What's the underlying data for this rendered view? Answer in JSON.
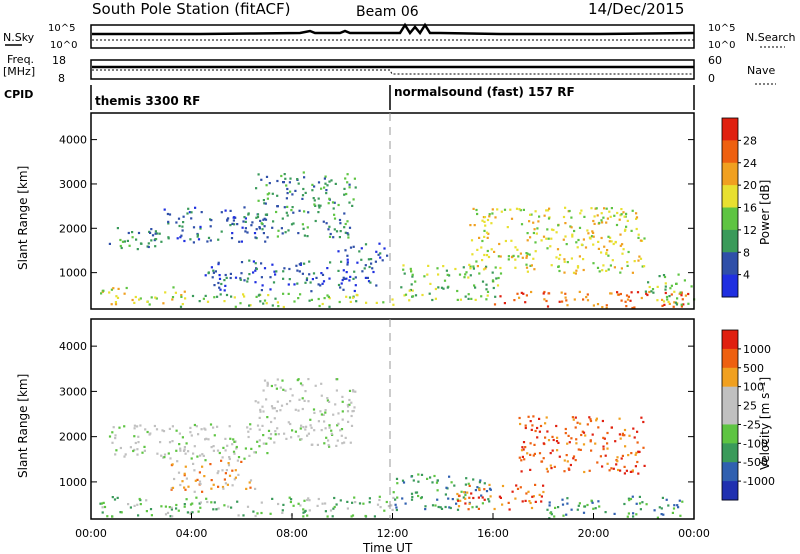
{
  "header": {
    "title": "South Pole Station (fitACF)",
    "beam": "Beam 06",
    "date": "14/Dec/2015"
  },
  "top_panels": {
    "nsky_label": "N.Sky",
    "nsky_ticks": [
      "10^5",
      "10^0"
    ],
    "nsearch_label": "N.Search",
    "nsearch_ticks": [
      "10^5",
      "10^0"
    ],
    "freq_label_1": "Freq.",
    "freq_label_2": "[MHz]",
    "freq_ticks": [
      "18",
      "8"
    ],
    "nave_label": "Nave",
    "nave_ticks": [
      "60",
      "0"
    ],
    "cpid_label": "CPID",
    "cpid_left": "themis 3300 RF",
    "cpid_right": "normalsound (fast) 157 RF",
    "cpid_switch_time": "12:00"
  },
  "chart_data": [
    {
      "type": "heatmap",
      "name": "power",
      "ylabel": "Slant Range [km]",
      "xlabel": "",
      "ylim": [
        180,
        4600
      ],
      "xlim": [
        "00:00",
        "24:00"
      ],
      "y_ticks": [
        "1000",
        "2000",
        "3000",
        "4000"
      ],
      "colorbar_label": "Power [dB]",
      "colorbar_ticks": [
        "4",
        "8",
        "12",
        "16",
        "20",
        "24",
        "28"
      ],
      "colorbar_colors": [
        "#1f2fe0",
        "#2f4fa8",
        "#3a9a5a",
        "#5ec442",
        "#e8e030",
        "#f0a020",
        "#ee6010",
        "#e02010"
      ],
      "regions": [
        {
          "t0": 0.7,
          "t1": 2.6,
          "r0": 1500,
          "r1": 2100,
          "level": 2
        },
        {
          "t0": 2.5,
          "t1": 7.0,
          "r0": 1700,
          "r1": 2500,
          "level": 1
        },
        {
          "t0": 6.5,
          "t1": 10.5,
          "r0": 1800,
          "r1": 3300,
          "level": 2
        },
        {
          "t0": 4.5,
          "t1": 11.5,
          "r0": 600,
          "r1": 1300,
          "level": 1
        },
        {
          "t0": 9.8,
          "t1": 11.8,
          "r0": 1300,
          "r1": 1700,
          "level": 1
        },
        {
          "t0": 0.3,
          "t1": 3.8,
          "r0": 300,
          "r1": 700,
          "level": 4
        },
        {
          "t0": 3.5,
          "t1": 12.0,
          "r0": 250,
          "r1": 550,
          "level": 3
        },
        {
          "t0": 12.2,
          "t1": 16.2,
          "r0": 400,
          "r1": 1200,
          "level": 3
        },
        {
          "t0": 15.0,
          "t1": 22.0,
          "r0": 1000,
          "r1": 2500,
          "level": 4
        },
        {
          "t0": 16.0,
          "t1": 23.8,
          "r0": 220,
          "r1": 600,
          "level": 6
        },
        {
          "t0": 22.0,
          "t1": 24.0,
          "r0": 300,
          "r1": 1000,
          "level": 3
        }
      ]
    },
    {
      "type": "heatmap",
      "name": "velocity",
      "ylabel": "Slant Range [km]",
      "xlabel": "Time UT",
      "ylim": [
        180,
        4600
      ],
      "xlim": [
        "00:00",
        "24:00"
      ],
      "x_ticks": [
        "00:00",
        "04:00",
        "08:00",
        "12:00",
        "16:00",
        "20:00",
        "00:00"
      ],
      "y_ticks": [
        "1000",
        "2000",
        "3000",
        "4000"
      ],
      "colorbar_label": "Velocity [m s⁻¹]",
      "colorbar_ticks": [
        "1000",
        "500",
        "100",
        "25",
        "-25",
        "-100",
        "-500",
        "-1000"
      ],
      "colorbar_colors": [
        "#2030b0",
        "#3060b0",
        "#3a9a5a",
        "#5ec442",
        "#c0c0c0",
        "#c0c0c0",
        "#f0a020",
        "#ee6010",
        "#e02010"
      ],
      "regions": [
        {
          "t0": 0.7,
          "t1": 7.0,
          "r0": 1500,
          "r1": 2300,
          "level": 4
        },
        {
          "t0": 6.5,
          "t1": 10.5,
          "r0": 1800,
          "r1": 3300,
          "level": 4
        },
        {
          "t0": 3.0,
          "t1": 6.5,
          "r0": 800,
          "r1": 1500,
          "level": 6
        },
        {
          "t0": 0.3,
          "t1": 12.0,
          "r0": 250,
          "r1": 700,
          "level": 3
        },
        {
          "t0": 12.0,
          "t1": 16.0,
          "r0": 400,
          "r1": 1200,
          "level": 2
        },
        {
          "t0": 17.0,
          "t1": 22.0,
          "r0": 1200,
          "r1": 2500,
          "level": 7
        },
        {
          "t0": 14.5,
          "t1": 18.0,
          "r0": 400,
          "r1": 1000,
          "level": 7
        },
        {
          "t0": 18.0,
          "t1": 23.5,
          "r0": 220,
          "r1": 700,
          "level": 2
        }
      ]
    }
  ]
}
